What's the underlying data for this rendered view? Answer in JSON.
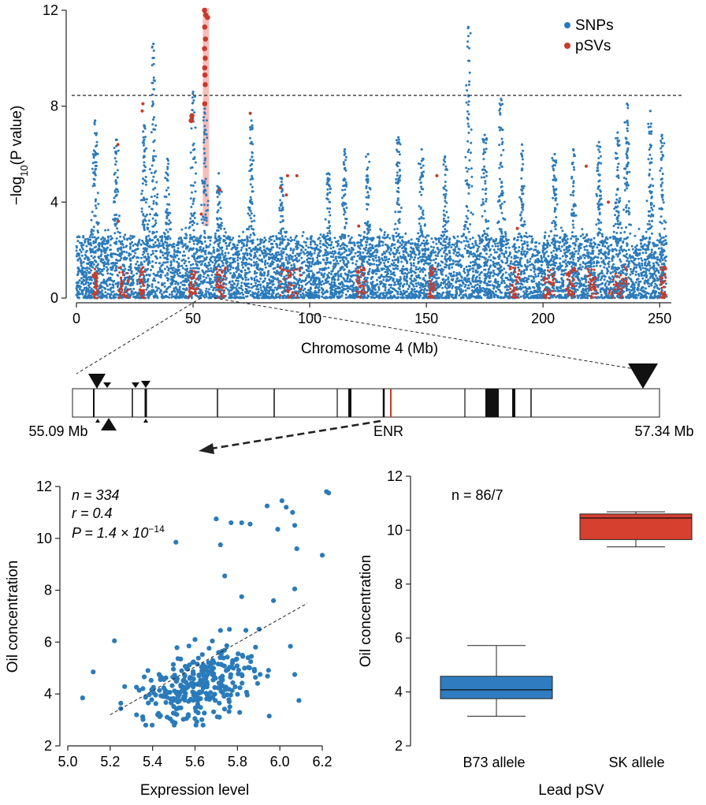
{
  "colors": {
    "snp": "#2b7bba",
    "psv": "#c73b2b",
    "highlight": "#f4a7a0",
    "box_b73": "#2f7cc1",
    "box_sk": "#d6402f",
    "scatter": "#2b7bba"
  },
  "chart_data": [
    {
      "type": "scatter",
      "name": "manhattan",
      "title": "",
      "xlabel": "Chromosome 4 (Mb)",
      "ylabel_main": "−log",
      "ylabel_sub": "10",
      "ylabel_tail": "(P value)",
      "xlim": [
        0,
        255
      ],
      "ylim": [
        0,
        12
      ],
      "xticks": [
        "0",
        "50",
        "100",
        "150",
        "200",
        "250"
      ],
      "yticks": [
        "0",
        "4",
        "8",
        "12"
      ],
      "threshold": 8.45,
      "highlight_region": [
        54.2,
        56.8
      ],
      "legend": [
        "SNPs",
        "pSVs"
      ],
      "legend_position": "top-right",
      "snp_peaks": [
        [
          8,
          7.4
        ],
        [
          17,
          6.6
        ],
        [
          29,
          7.2
        ],
        [
          33,
          10.6
        ],
        [
          39,
          5.8
        ],
        [
          50,
          8.6
        ],
        [
          55,
          7.9
        ],
        [
          61,
          5.2
        ],
        [
          75,
          7.4
        ],
        [
          88,
          5.0
        ],
        [
          108,
          5.2
        ],
        [
          115,
          6.2
        ],
        [
          125,
          6.0
        ],
        [
          138,
          6.7
        ],
        [
          148,
          6.2
        ],
        [
          158,
          5.9
        ],
        [
          168,
          11.3
        ],
        [
          175,
          6.8
        ],
        [
          182,
          8.3
        ],
        [
          191,
          6.4
        ],
        [
          205,
          6.0
        ],
        [
          213,
          6.2
        ],
        [
          224,
          6.5
        ],
        [
          232,
          6.9
        ],
        [
          236,
          8.1
        ],
        [
          246,
          7.8
        ],
        [
          251,
          6.8
        ]
      ],
      "psv_highlighted": [
        [
          54.9,
          12.0
        ],
        [
          55.4,
          11.8
        ],
        [
          56.2,
          11.7
        ],
        [
          55.0,
          11.3
        ],
        [
          55.3,
          10.8
        ],
        [
          54.9,
          10.4
        ],
        [
          55.2,
          10.0
        ],
        [
          55.0,
          9.6
        ],
        [
          55.1,
          9.3
        ],
        [
          55.2,
          8.9
        ],
        [
          55.0,
          8.1
        ],
        [
          49.5,
          7.6
        ],
        [
          49.2,
          7.4
        ]
      ],
      "psv_other": [
        [
          28.5,
          8.1
        ],
        [
          28.2,
          7.8
        ],
        [
          74.5,
          7.7
        ],
        [
          17.8,
          6.4
        ],
        [
          90.5,
          5.1
        ],
        [
          94.5,
          5.1
        ],
        [
          87.5,
          4.6
        ],
        [
          90.0,
          4.3
        ],
        [
          154.5,
          5.1
        ],
        [
          218.5,
          5.5
        ],
        [
          228.0,
          4.0
        ],
        [
          61.5,
          4.5
        ],
        [
          18.0,
          3.2
        ],
        [
          53.5,
          3.5
        ],
        [
          121.0,
          3.0
        ],
        [
          189.0,
          2.9
        ]
      ]
    },
    {
      "type": "diagram",
      "name": "locus",
      "left_label": "55.09 Mb",
      "right_label": "57.34 Mb",
      "gene_label": "ENR",
      "range": [
        55.09,
        57.34
      ]
    },
    {
      "type": "scatter",
      "name": "expression",
      "xlabel": "Expression level",
      "ylabel": "Oil concentration",
      "xlim": [
        5.0,
        6.2
      ],
      "ylim": [
        2,
        12
      ],
      "xticks": [
        "5.0",
        "5.2",
        "5.4",
        "5.6",
        "5.8",
        "6.0",
        "6.2"
      ],
      "yticks": [
        "2",
        "4",
        "6",
        "8",
        "10",
        "12"
      ],
      "stat_n": "n = 334",
      "stat_r": "r = 0.4",
      "stat_p": "P = 1.4 × 10",
      "stat_p_exp": "−14",
      "fit_line": [
        [
          5.2,
          3.2
        ],
        [
          6.13,
          7.5
        ]
      ],
      "outliers": [
        [
          6.22,
          11.8
        ],
        [
          6.23,
          11.75
        ],
        [
          5.94,
          11.25
        ],
        [
          6.01,
          11.45
        ],
        [
          6.03,
          11.2
        ],
        [
          6.06,
          11.0
        ],
        [
          5.7,
          10.75
        ],
        [
          5.77,
          10.6
        ],
        [
          5.82,
          10.6
        ],
        [
          5.86,
          10.55
        ],
        [
          6.07,
          10.5
        ],
        [
          5.99,
          10.35
        ],
        [
          5.51,
          9.85
        ],
        [
          5.72,
          9.75
        ],
        [
          6.08,
          9.6
        ],
        [
          6.2,
          9.35
        ],
        [
          5.74,
          8.55
        ],
        [
          6.07,
          8.05
        ],
        [
          5.82,
          7.75
        ],
        [
          5.97,
          7.6
        ],
        [
          5.22,
          6.05
        ],
        [
          5.07,
          3.85
        ],
        [
          5.12,
          4.85
        ],
        [
          6.09,
          3.75
        ],
        [
          6.07,
          4.75
        ],
        [
          5.95,
          3.15
        ],
        [
          5.72,
          6.45
        ],
        [
          5.85,
          5.4
        ],
        [
          5.6,
          6.1
        ]
      ],
      "cluster": {
        "count": 305,
        "x_mean": 5.62,
        "x_sd": 0.14,
        "y_mean": 4.35,
        "y_sd": 0.65,
        "slope": 1.8
      }
    },
    {
      "type": "box",
      "name": "lead_psv",
      "xlabel": "Lead pSV",
      "ylabel": "Oil concentration",
      "ylim": [
        2,
        12
      ],
      "yticks": [
        "2",
        "4",
        "6",
        "8",
        "10",
        "12"
      ],
      "stat_n": "n = 86/7",
      "groups": [
        {
          "label": "B73 allele",
          "min": 3.1,
          "q1": 3.75,
          "median": 4.08,
          "q3": 4.58,
          "max": 5.72
        },
        {
          "label": "SK allele",
          "min": 9.38,
          "q1": 9.65,
          "median": 10.45,
          "q3": 10.6,
          "max": 10.68
        }
      ]
    }
  ]
}
